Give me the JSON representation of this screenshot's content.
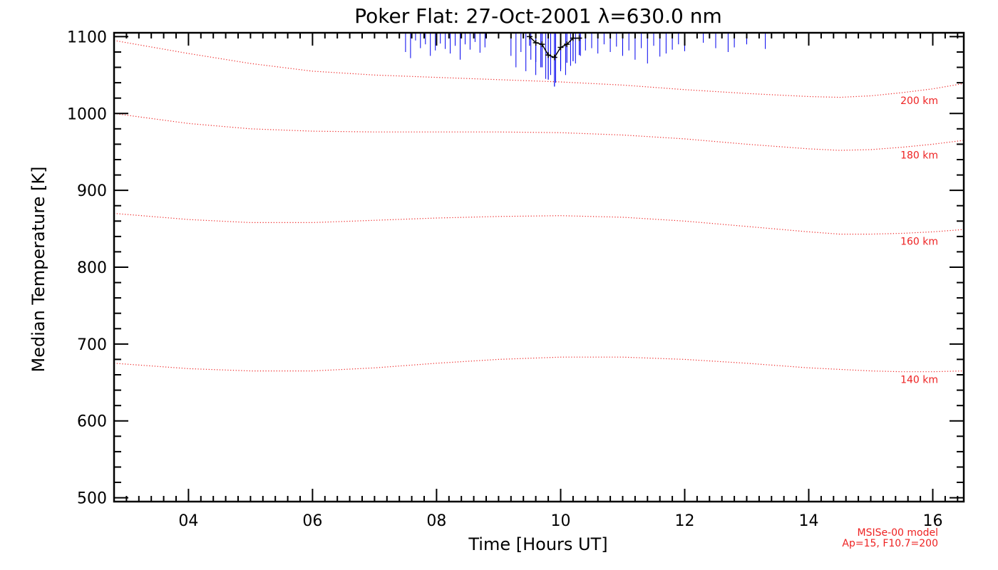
{
  "chart_data": {
    "type": "line",
    "title": "Poker Flat: 27-Oct-2001 λ=630.0 nm",
    "xlabel": "Time [Hours UT]",
    "ylabel": "Median Temperature [K]",
    "xlim": [
      2.8,
      16.5
    ],
    "ylim": [
      495,
      1105
    ],
    "x_ticks": [
      4,
      6,
      8,
      10,
      12,
      14,
      16
    ],
    "x_tick_labels": [
      "04",
      "06",
      "08",
      "10",
      "12",
      "14",
      "16"
    ],
    "y_ticks": [
      500,
      600,
      700,
      800,
      900,
      1000,
      1100
    ],
    "y_tick_labels": [
      "500",
      "600",
      "700",
      "800",
      "900",
      "1000",
      "1100"
    ],
    "grid": false,
    "model_label_lines": [
      "MSISe-00 model",
      "Ap=15, F10.7=200"
    ],
    "colors": {
      "model": "#ee2222",
      "errorbar": "#0000ee",
      "median": "#000000",
      "axis": "#000000"
    },
    "series": [
      {
        "name": "200 km",
        "style": "dotted",
        "x": [
          2.8,
          4,
          5,
          6,
          7,
          8,
          9,
          10,
          11,
          12,
          13,
          14,
          14.5,
          15,
          15.5,
          16,
          16.5
        ],
        "y": [
          1095,
          1078,
          1065,
          1055,
          1050,
          1047,
          1044,
          1041,
          1037,
          1031,
          1026,
          1022,
          1021,
          1023,
          1027,
          1032,
          1039
        ]
      },
      {
        "name": "180 km",
        "style": "dotted",
        "x": [
          2.8,
          4,
          5,
          6,
          7,
          8,
          9,
          10,
          11,
          12,
          13,
          14,
          14.5,
          15,
          15.5,
          16,
          16.5
        ],
        "y": [
          1000,
          987,
          980,
          977,
          976,
          976,
          976,
          975,
          972,
          967,
          960,
          954,
          952,
          953,
          956,
          960,
          965
        ]
      },
      {
        "name": "160 km",
        "style": "dotted",
        "x": [
          2.8,
          4,
          5,
          6,
          7,
          8,
          9,
          10,
          11,
          12,
          13,
          14,
          14.5,
          15,
          15.5,
          16,
          16.5
        ],
        "y": [
          870,
          862,
          858,
          858,
          861,
          864,
          866,
          867,
          865,
          860,
          853,
          846,
          843,
          843,
          844,
          846,
          849
        ]
      },
      {
        "name": "140 km",
        "style": "dotted",
        "x": [
          2.8,
          4,
          5,
          6,
          7,
          8,
          9,
          10,
          11,
          12,
          13,
          14,
          15,
          15.5,
          16,
          16.5
        ],
        "y": [
          675,
          668,
          665,
          665,
          669,
          675,
          680,
          683,
          683,
          680,
          675,
          669,
          665,
          664,
          664,
          665
        ]
      },
      {
        "name": "Median temperature",
        "style": "solid-with-errorbars",
        "x": [
          9.5,
          9.6,
          9.7,
          9.8,
          9.9,
          10.0,
          10.1,
          10.2,
          10.3
        ],
        "y": [
          1100,
          1092,
          1090,
          1076,
          1073,
          1086,
          1090,
          1098,
          1098
        ],
        "err": [
          12,
          25,
          30,
          32,
          38,
          28,
          24,
          30,
          22
        ]
      }
    ],
    "errorbars_clipped_top": {
      "x": [
        7.5,
        7.58,
        7.66,
        7.74,
        7.82,
        7.9,
        7.98,
        8.06,
        8.14,
        8.22,
        8.3,
        8.38,
        8.46,
        8.54,
        8.62,
        8.7,
        8.78,
        9.2,
        9.28,
        9.36,
        9.44,
        9.52,
        9.6,
        9.68,
        9.76,
        9.84,
        9.92,
        10.0,
        10.08,
        10.16,
        10.24,
        10.32,
        10.4,
        10.5,
        10.6,
        10.7,
        10.8,
        10.9,
        11.0,
        11.1,
        11.2,
        11.3,
        11.4,
        11.5,
        11.6,
        11.7,
        11.8,
        11.9,
        12.0,
        12.3,
        12.5,
        12.7,
        12.8,
        13.0,
        13.3
      ],
      "y_low": [
        1080,
        1072,
        1095,
        1085,
        1090,
        1075,
        1082,
        1091,
        1084,
        1078,
        1088,
        1070,
        1090,
        1083,
        1093,
        1079,
        1086,
        1075,
        1060,
        1080,
        1055,
        1070,
        1050,
        1060,
        1045,
        1050,
        1040,
        1055,
        1050,
        1062,
        1065,
        1075,
        1082,
        1085,
        1078,
        1090,
        1080,
        1087,
        1075,
        1082,
        1070,
        1085,
        1065,
        1088,
        1074,
        1078,
        1083,
        1090,
        1081,
        1092,
        1085,
        1080,
        1086,
        1090,
        1084
      ]
    }
  }
}
